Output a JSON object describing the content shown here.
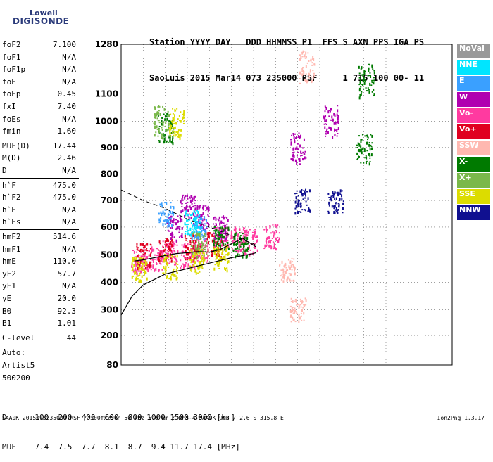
{
  "logo": {
    "line1": "Lowell",
    "line2": "DIGISONDE"
  },
  "header": {
    "line1": "Station YYYY DAY   DDD HHMMSS P1  FFS S AXN PPS IGA PS",
    "line2": "SaoLuis 2015 Mar14 073 235000 RSF     1 715 100 00- 11"
  },
  "params": [
    {
      "label": "foF2",
      "value": "7.100"
    },
    {
      "label": "foF1",
      "value": "N/A"
    },
    {
      "label": "foF1p",
      "value": "N/A"
    },
    {
      "label": "foE",
      "value": "N/A"
    },
    {
      "label": "foEp",
      "value": "0.45"
    },
    {
      "label": "fxI",
      "value": "7.40"
    },
    {
      "label": "foEs",
      "value": "N/A"
    },
    {
      "label": "fmin",
      "value": "1.60"
    },
    {
      "label": "MUF(D)",
      "value": "17.44"
    },
    {
      "label": "M(D)",
      "value": "2.46"
    },
    {
      "label": "D",
      "value": "N/A"
    },
    {
      "label": "h`F",
      "value": "475.0"
    },
    {
      "label": "h`F2",
      "value": "475.0"
    },
    {
      "label": "h`E",
      "value": "N/A"
    },
    {
      "label": "h`Es",
      "value": "N/A"
    },
    {
      "label": "hmF2",
      "value": "514.6"
    },
    {
      "label": "hmF1",
      "value": "N/A"
    },
    {
      "label": "hmE",
      "value": "110.0"
    },
    {
      "label": "yF2",
      "value": "57.7"
    },
    {
      "label": "yF1",
      "value": "N/A"
    },
    {
      "label": "yE",
      "value": "20.0"
    },
    {
      "label": "B0",
      "value": "92.3"
    },
    {
      "label": "B1",
      "value": "1.01"
    },
    {
      "label": "C-level",
      "value": "44"
    }
  ],
  "auto": {
    "label": "Auto:",
    "artist": "Artist5",
    "version": "500200"
  },
  "legend": [
    {
      "label": "NoVal",
      "bg": "#999999",
      "fg": "#ffffff"
    },
    {
      "label": "NNE",
      "bg": "#00e5ff",
      "fg": "#ffffff"
    },
    {
      "label": "E",
      "bg": "#3aa0ff",
      "fg": "#ffffff"
    },
    {
      "label": "W",
      "bg": "#b000b0",
      "fg": "#ffffff"
    },
    {
      "label": "Vo-",
      "bg": "#ff3aa0",
      "fg": "#ffffff"
    },
    {
      "label": "Vo+",
      "bg": "#e00020",
      "fg": "#ffffff"
    },
    {
      "label": "SSW",
      "bg": "#ffb8b0",
      "fg": "#ffffff"
    },
    {
      "label": "X-",
      "bg": "#007a00",
      "fg": "#ffffff"
    },
    {
      "label": "X+",
      "bg": "#7ab84a",
      "fg": "#ffffff"
    },
    {
      "label": "SSE",
      "bg": "#dcdc00",
      "fg": "#ffffff"
    },
    {
      "label": "NNW",
      "bg": "#101090",
      "fg": "#ffffff"
    }
  ],
  "bottom": {
    "d_line": "D      100  200  400  600  800 1000 1500 3000 [km]",
    "muf_line": "MUF    7.4  7.5  7.7  8.1  8.7  9.4 11.7 17.4 [MHz]"
  },
  "footer": {
    "left": "SAA0K_2015073235000.RSF / 300fx256h 50 kHz 5.0 km / DPS-4 SAA0K 903 / 2.6 S 315.8 E",
    "right": "Ion2Png 1.3.17"
  },
  "chart_data": {
    "type": "scatter",
    "title": "",
    "xlabel": "",
    "ylabel": "",
    "xlim": [
      1,
      16
    ],
    "ylim": [
      80,
      1280
    ],
    "x_ticks": [
      1,
      2,
      3,
      4,
      5,
      6,
      7,
      8,
      9,
      10,
      11,
      12,
      13,
      14,
      15,
      16
    ],
    "y_ticks": [
      80,
      200,
      300,
      400,
      500,
      600,
      700,
      800,
      900,
      1000,
      1100,
      1280
    ],
    "y_scale": "nonlinear",
    "y_tick_labels": [
      "80",
      "200",
      "300",
      "400",
      "500",
      "600",
      "700",
      "800",
      "900",
      "1000",
      "1100",
      "1280"
    ],
    "grid": "dotted",
    "series": [
      {
        "name": "NoVal",
        "color": "#999999",
        "clusters": []
      },
      {
        "name": "Vo-",
        "color": "#ff3aa0",
        "clusters": [
          [
            1.8,
            480
          ],
          [
            2.5,
            490
          ],
          [
            3.2,
            510
          ],
          [
            4.0,
            500
          ],
          [
            4.6,
            520
          ],
          [
            5.5,
            560
          ],
          [
            6.3,
            560
          ],
          [
            6.8,
            550
          ],
          [
            7.8,
            570
          ]
        ]
      },
      {
        "name": "Vo+",
        "color": "#e00020",
        "clusters": [
          [
            2.0,
            500
          ],
          [
            3.0,
            520
          ],
          [
            4.2,
            530
          ],
          [
            5.2,
            540
          ]
        ]
      },
      {
        "name": "W",
        "color": "#b000b0",
        "clusters": [
          [
            3.4,
            600
          ],
          [
            4.0,
            680
          ],
          [
            4.6,
            640
          ],
          [
            5.5,
            600
          ],
          [
            9.0,
            900
          ],
          [
            10.5,
            1000
          ]
        ]
      },
      {
        "name": "E",
        "color": "#3aa0ff",
        "clusters": [
          [
            3.0,
            650
          ],
          [
            4.5,
            600
          ]
        ]
      },
      {
        "name": "NNE",
        "color": "#00e5ff",
        "clusters": [
          [
            4.2,
            620
          ]
        ]
      },
      {
        "name": "SSW",
        "color": "#ffb8b0",
        "clusters": [
          [
            8.5,
            450
          ],
          [
            9.0,
            300
          ],
          [
            9.4,
            1200
          ]
        ]
      },
      {
        "name": "X-",
        "color": "#007a00",
        "clusters": [
          [
            3.0,
            980
          ],
          [
            5.5,
            560
          ],
          [
            6.4,
            540
          ],
          [
            12.0,
            900
          ],
          [
            12.1,
            1150
          ]
        ]
      },
      {
        "name": "X+",
        "color": "#7ab84a",
        "clusters": [
          [
            2.8,
            1000
          ],
          [
            4.5,
            540
          ]
        ]
      },
      {
        "name": "SSE",
        "color": "#dcdc00",
        "clusters": [
          [
            1.8,
            450
          ],
          [
            3.2,
            460
          ],
          [
            4.4,
            480
          ],
          [
            5.5,
            490
          ],
          [
            3.5,
            1000
          ]
        ]
      },
      {
        "name": "NNW",
        "color": "#101090",
        "clusters": [
          [
            9.2,
            700
          ],
          [
            10.7,
            700
          ]
        ]
      }
    ],
    "trace_solid": [
      [
        1,
        280
      ],
      [
        1.5,
        350
      ],
      [
        2,
        390
      ],
      [
        3,
        430
      ],
      [
        4,
        450
      ],
      [
        5,
        470
      ],
      [
        6,
        490
      ],
      [
        7,
        505
      ],
      [
        7.1,
        508
      ]
    ],
    "trace_dashed": [
      [
        1,
        740
      ],
      [
        2,
        700
      ],
      [
        3,
        670
      ],
      [
        4,
        630
      ],
      [
        5,
        600
      ],
      [
        6,
        570
      ],
      [
        7,
        540
      ],
      [
        7.1,
        535
      ]
    ],
    "trace_profile": [
      [
        1.6,
        478
      ],
      [
        2.0,
        482
      ],
      [
        2.5,
        490
      ],
      [
        3.0,
        498
      ],
      [
        3.5,
        505
      ],
      [
        4.0,
        508
      ],
      [
        4.5,
        512
      ],
      [
        5.0,
        510
      ],
      [
        5.5,
        520
      ],
      [
        6.0,
        540
      ],
      [
        6.5,
        560
      ],
      [
        7.1,
        530
      ]
    ]
  }
}
